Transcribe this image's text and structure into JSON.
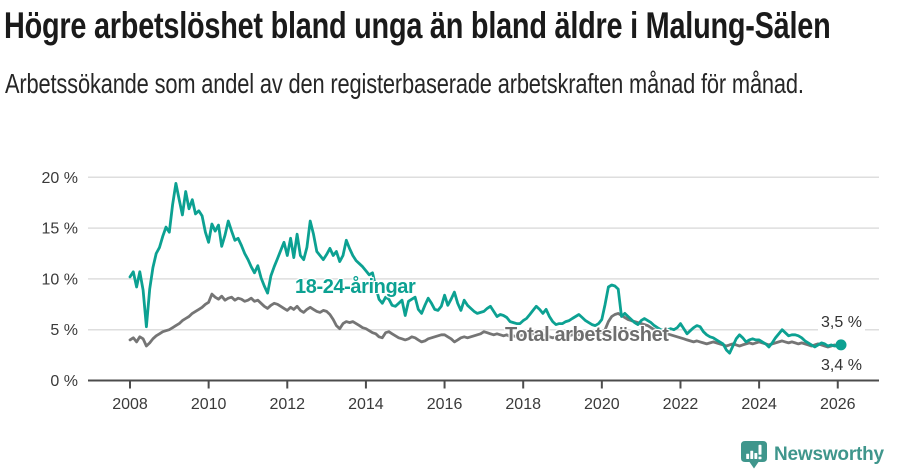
{
  "header": {
    "title": "Högre arbetslöshet bland unga än bland äldre i Malung-Sälen",
    "subtitle": "Arbetssökande som andel av den registerbaserade arbetskraften månad för månad."
  },
  "chart_data": {
    "type": "line",
    "title": "Högre arbetslöshet bland unga än bland äldre i Malung-Sälen",
    "subtitle": "Arbetssökande som andel av den registerbaserade arbetskraften månad för månad.",
    "frequency": "monthly",
    "x_range": {
      "start": "2008-01",
      "end": "2026-02"
    },
    "ylim": [
      0,
      20
    ],
    "grid": "horizontal",
    "x_axis": {
      "ticks": [
        2008,
        2010,
        2012,
        2014,
        2016,
        2018,
        2020,
        2022,
        2024,
        2026
      ],
      "tick_labels": [
        "2008",
        "2010",
        "2012",
        "2014",
        "2016",
        "2018",
        "2020",
        "2022",
        "2024",
        "2026"
      ]
    },
    "y_axis": {
      "ticks": [
        0,
        5,
        10,
        15,
        20
      ],
      "tick_labels": [
        "0 %",
        "5 %",
        "10 %",
        "15 %",
        "20 %"
      ]
    },
    "series": [
      {
        "name": "18-24-åringar",
        "color": "#0ca192",
        "end_dot": true,
        "end_value_label": "3,5 %",
        "values": [
          10.2,
          10.7,
          9.2,
          10.7,
          8.9,
          5.3,
          9.0,
          11.1,
          12.5,
          13.1,
          14.2,
          15.1,
          14.6,
          17.3,
          19.4,
          17.8,
          16.3,
          18.6,
          16.9,
          17.8,
          16.4,
          16.7,
          16.2,
          14.6,
          13.6,
          15.4,
          14.7,
          15.3,
          13.2,
          14.3,
          15.7,
          14.7,
          13.8,
          14.0,
          13.3,
          12.5,
          11.9,
          11.2,
          10.6,
          11.3,
          10.1,
          9.3,
          8.6,
          10.3,
          11.2,
          12.0,
          12.8,
          13.6,
          12.3,
          14.0,
          12.1,
          14.4,
          12.3,
          11.9,
          13.1,
          15.7,
          14.4,
          12.7,
          12.3,
          11.9,
          12.4,
          13.0,
          12.3,
          12.7,
          11.7,
          12.3,
          13.8,
          13.0,
          12.3,
          11.8,
          11.5,
          11.2,
          10.8,
          10.4,
          10.6,
          9.2,
          8.0,
          7.6,
          8.2,
          8.0,
          7.4,
          7.3,
          7.6,
          7.9,
          6.4,
          7.8,
          8.0,
          8.2,
          7.0,
          6.6,
          7.4,
          8.1,
          7.6,
          7.0,
          6.9,
          7.3,
          8.4,
          7.4,
          8.0,
          8.7,
          7.6,
          6.9,
          7.9,
          7.4,
          7.1,
          6.8,
          6.6,
          6.7,
          6.8,
          7.1,
          7.3,
          6.8,
          6.3,
          6.5,
          6.4,
          6.2,
          5.8,
          5.7,
          5.6,
          5.6,
          5.9,
          6.1,
          6.5,
          6.9,
          7.3,
          7.0,
          6.6,
          7.0,
          6.3,
          5.8,
          5.5,
          5.6,
          5.6,
          5.8,
          5.9,
          6.1,
          6.3,
          6.5,
          6.2,
          5.9,
          5.7,
          5.5,
          5.4,
          5.6,
          6.0,
          7.5,
          9.2,
          9.4,
          9.3,
          9.0,
          6.3,
          6.6,
          6.3,
          6.0,
          5.7,
          5.5,
          5.9,
          6.1,
          5.9,
          5.7,
          5.4,
          5.2,
          5.0,
          4.9,
          5.0,
          5.1,
          5.0,
          5.2,
          5.6,
          5.1,
          4.6,
          4.9,
          5.2,
          5.4,
          5.3,
          4.8,
          4.5,
          4.3,
          4.2,
          4.0,
          3.8,
          3.6,
          3.0,
          2.7,
          3.4,
          4.1,
          4.5,
          4.2,
          3.8,
          4.0,
          4.1,
          4.0,
          4.0,
          3.8,
          3.6,
          3.3,
          3.7,
          4.2,
          4.6,
          5.0,
          4.7,
          4.4,
          4.5,
          4.5,
          4.4,
          4.2,
          3.9,
          3.7,
          3.5,
          3.3,
          3.5,
          3.7,
          3.6,
          3.4,
          3.5,
          3.4,
          3.4,
          3.5
        ]
      },
      {
        "name": "Total arbetslöshet",
        "color": "#757575",
        "end_dot": false,
        "end_value_label": "3,4 %",
        "values": [
          4.0,
          4.2,
          3.8,
          4.3,
          4.1,
          3.4,
          3.7,
          4.1,
          4.4,
          4.6,
          4.8,
          4.9,
          5.0,
          5.2,
          5.4,
          5.6,
          5.9,
          6.1,
          6.3,
          6.6,
          6.8,
          7.0,
          7.2,
          7.5,
          7.7,
          8.5,
          8.2,
          8.0,
          8.3,
          7.9,
          8.1,
          8.2,
          7.9,
          8.1,
          8.0,
          7.8,
          7.9,
          8.1,
          7.8,
          7.9,
          7.6,
          7.3,
          7.1,
          7.4,
          7.6,
          7.5,
          7.3,
          7.1,
          6.9,
          7.2,
          7.0,
          7.3,
          6.9,
          6.7,
          7.0,
          7.2,
          7.0,
          6.8,
          6.7,
          6.9,
          6.8,
          6.5,
          6.0,
          5.4,
          5.1,
          5.6,
          5.8,
          5.7,
          5.8,
          5.6,
          5.4,
          5.2,
          5.1,
          4.9,
          4.7,
          4.6,
          4.3,
          4.2,
          4.7,
          4.8,
          4.6,
          4.4,
          4.2,
          4.1,
          4.0,
          4.1,
          4.3,
          4.2,
          4.0,
          3.8,
          3.9,
          4.1,
          4.2,
          4.3,
          4.4,
          4.5,
          4.5,
          4.3,
          4.1,
          3.8,
          4.0,
          4.2,
          4.3,
          4.2,
          4.3,
          4.4,
          4.5,
          4.6,
          4.8,
          4.7,
          4.6,
          4.5,
          4.6,
          4.5,
          4.4,
          4.5,
          4.3,
          4.4,
          4.3,
          4.4,
          4.5,
          4.6,
          4.5,
          4.6,
          4.7,
          4.6,
          4.4,
          4.5,
          4.3,
          4.2,
          4.3,
          4.4,
          4.4,
          4.5,
          4.4,
          4.5,
          4.6,
          4.5,
          4.6,
          4.4,
          4.3,
          4.4,
          4.5,
          4.6,
          4.8,
          5.0,
          5.8,
          6.3,
          6.5,
          6.6,
          6.4,
          6.2,
          6.0,
          5.9,
          5.8,
          5.7,
          5.6,
          5.5,
          5.4,
          5.2,
          5.0,
          4.9,
          4.8,
          4.7,
          4.6,
          4.5,
          4.4,
          4.3,
          4.2,
          4.1,
          4.0,
          3.9,
          3.8,
          3.9,
          3.8,
          3.7,
          3.6,
          3.7,
          3.8,
          3.7,
          3.6,
          3.5,
          3.4,
          3.5,
          3.6,
          3.5,
          3.4,
          3.5,
          3.6,
          3.7,
          3.6,
          3.7,
          3.8,
          3.7,
          3.6,
          3.5,
          3.6,
          3.7,
          3.8,
          3.9,
          3.8,
          3.7,
          3.8,
          3.7,
          3.6,
          3.7,
          3.6,
          3.5,
          3.4,
          3.5,
          3.6,
          3.5,
          3.4,
          3.3,
          3.4,
          3.5,
          3.4,
          3.4
        ]
      }
    ],
    "annotations": {
      "series_label_young": "18-24-åringar",
      "series_label_total": "Total arbetslöshet",
      "end_value_young": "3,5 %",
      "end_value_total": "3,4 %"
    },
    "colors": {
      "accent_teal": "#0ca192",
      "series_gray": "#757575",
      "gridline": "#dedede",
      "axis": "#4c4c4c",
      "brand_teal": "#3f968c"
    }
  },
  "footer": {
    "brand": "Newsworthy",
    "brand_icon": "bar-chart-speech-bubble-icon"
  }
}
